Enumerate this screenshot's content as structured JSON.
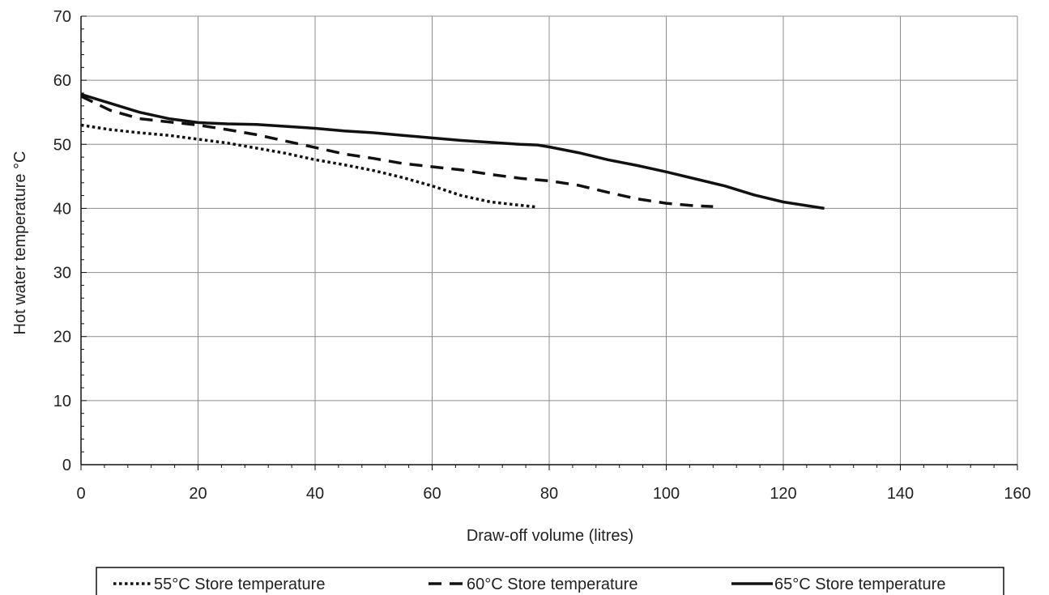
{
  "chart_data": {
    "type": "line",
    "title": "",
    "xlabel": "Draw-off volume (litres)",
    "ylabel": "Hot water temperature °C",
    "xlim": [
      0,
      160
    ],
    "ylim": [
      0,
      70
    ],
    "x_ticks": [
      0,
      20,
      40,
      60,
      80,
      100,
      120,
      140,
      160
    ],
    "y_ticks": [
      0,
      10,
      20,
      30,
      40,
      50,
      60,
      70
    ],
    "x_tick_labels": [
      "0",
      "20",
      "40",
      "60",
      "80",
      "100",
      "120",
      "140",
      "160"
    ],
    "y_tick_labels": [
      "0",
      "10",
      "20",
      "30",
      "40",
      "50",
      "60",
      "70"
    ],
    "grid": true,
    "legend_position": "bottom",
    "series": [
      {
        "name": "55°C Store temperature",
        "style": "dotted",
        "color": "#111111",
        "points": [
          [
            0,
            53
          ],
          [
            5,
            52.3
          ],
          [
            10,
            51.8
          ],
          [
            15,
            51.4
          ],
          [
            20,
            50.8
          ],
          [
            25,
            50.2
          ],
          [
            30,
            49.4
          ],
          [
            35,
            48.6
          ],
          [
            40,
            47.6
          ],
          [
            45,
            46.8
          ],
          [
            50,
            45.9
          ],
          [
            55,
            44.8
          ],
          [
            60,
            43.5
          ],
          [
            65,
            42.0
          ],
          [
            70,
            41.0
          ],
          [
            75,
            40.5
          ],
          [
            78,
            40.2
          ]
        ]
      },
      {
        "name": "60°C Store temperature",
        "style": "dashed",
        "color": "#111111",
        "points": [
          [
            0,
            57.5
          ],
          [
            5,
            55.3
          ],
          [
            10,
            54.0
          ],
          [
            15,
            53.5
          ],
          [
            20,
            53.0
          ],
          [
            25,
            52.3
          ],
          [
            30,
            51.5
          ],
          [
            35,
            50.5
          ],
          [
            40,
            49.5
          ],
          [
            45,
            48.5
          ],
          [
            50,
            47.8
          ],
          [
            55,
            47.0
          ],
          [
            60,
            46.5
          ],
          [
            65,
            46.0
          ],
          [
            70,
            45.3
          ],
          [
            75,
            44.7
          ],
          [
            80,
            44.3
          ],
          [
            85,
            43.6
          ],
          [
            90,
            42.5
          ],
          [
            95,
            41.5
          ],
          [
            100,
            40.8
          ],
          [
            105,
            40.4
          ],
          [
            108,
            40.3
          ]
        ]
      },
      {
        "name": "65°C Store temperature",
        "style": "solid",
        "color": "#111111",
        "points": [
          [
            0,
            57.8
          ],
          [
            5,
            56.4
          ],
          [
            10,
            55.0
          ],
          [
            15,
            54.0
          ],
          [
            20,
            53.4
          ],
          [
            25,
            53.2
          ],
          [
            30,
            53.1
          ],
          [
            35,
            52.8
          ],
          [
            40,
            52.5
          ],
          [
            45,
            52.1
          ],
          [
            50,
            51.8
          ],
          [
            55,
            51.4
          ],
          [
            60,
            51.0
          ],
          [
            65,
            50.6
          ],
          [
            70,
            50.3
          ],
          [
            75,
            50.0
          ],
          [
            78,
            49.9
          ],
          [
            80,
            49.6
          ],
          [
            85,
            48.7
          ],
          [
            90,
            47.6
          ],
          [
            95,
            46.7
          ],
          [
            100,
            45.7
          ],
          [
            105,
            44.6
          ],
          [
            110,
            43.5
          ],
          [
            115,
            42.1
          ],
          [
            120,
            41.0
          ],
          [
            125,
            40.3
          ],
          [
            127,
            40.0
          ]
        ]
      }
    ]
  }
}
